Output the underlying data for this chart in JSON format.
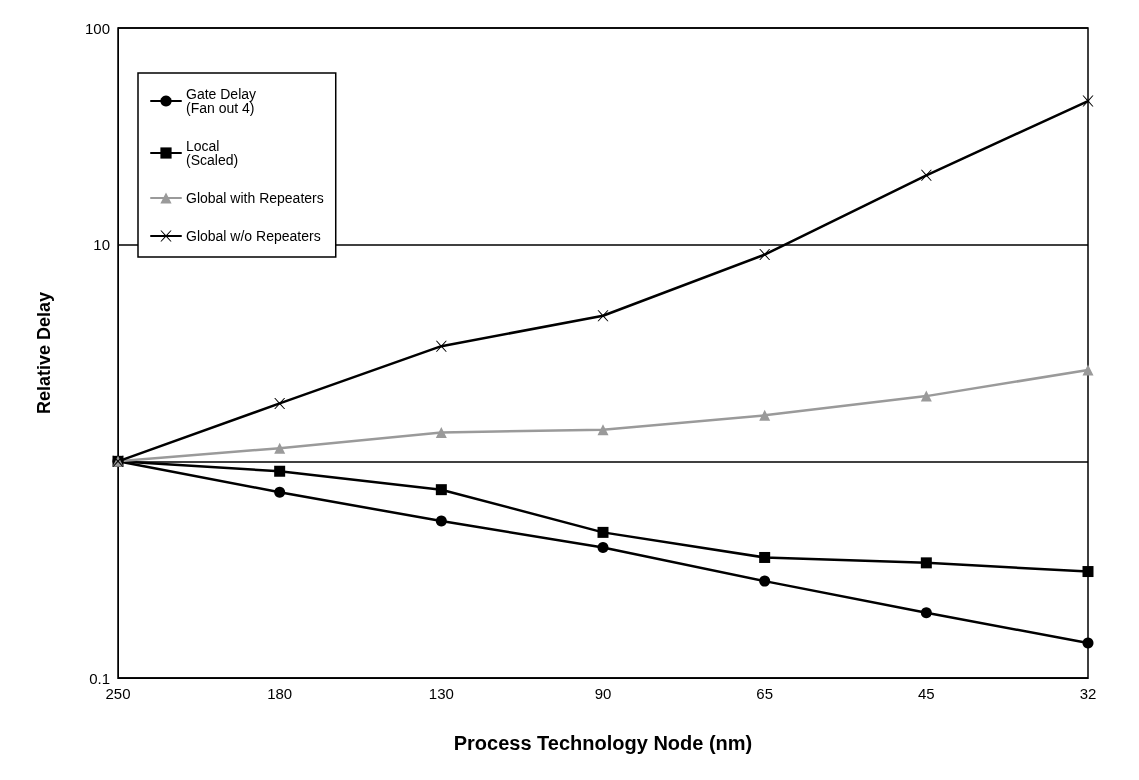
{
  "chart_data": {
    "type": "line",
    "xlabel": "Process Technology Node (nm)",
    "ylabel": "Relative Delay",
    "categories": [
      "250",
      "180",
      "130",
      "90",
      "65",
      "45",
      "32"
    ],
    "series": [
      {
        "name": "Gate Delay\n(Fan out 4)",
        "color": "#000000",
        "marker": "circle",
        "values": [
          1,
          0.72,
          0.53,
          0.4,
          0.28,
          0.2,
          0.145
        ]
      },
      {
        "name": "Local\n(Scaled)",
        "color": "#000000",
        "marker": "square",
        "values": [
          1,
          0.9,
          0.74,
          0.47,
          0.36,
          0.34,
          0.31
        ]
      },
      {
        "name": "Global with Repeaters",
        "color": "#9a9a9a",
        "marker": "triangle",
        "values": [
          1,
          1.15,
          1.36,
          1.4,
          1.63,
          2.0,
          2.64
        ]
      },
      {
        "name": "Global w/o Repeaters",
        "color": "#000000",
        "marker": "cross",
        "values": [
          1,
          1.85,
          3.4,
          4.7,
          9.0,
          20.9,
          46
        ]
      }
    ],
    "log": "y",
    "ylim": [
      0.1,
      100
    ],
    "yticks": [
      0.1,
      {
        "value": 1,
        "label": null
      },
      10,
      100
    ],
    "grid": "y",
    "legend": "top left"
  }
}
